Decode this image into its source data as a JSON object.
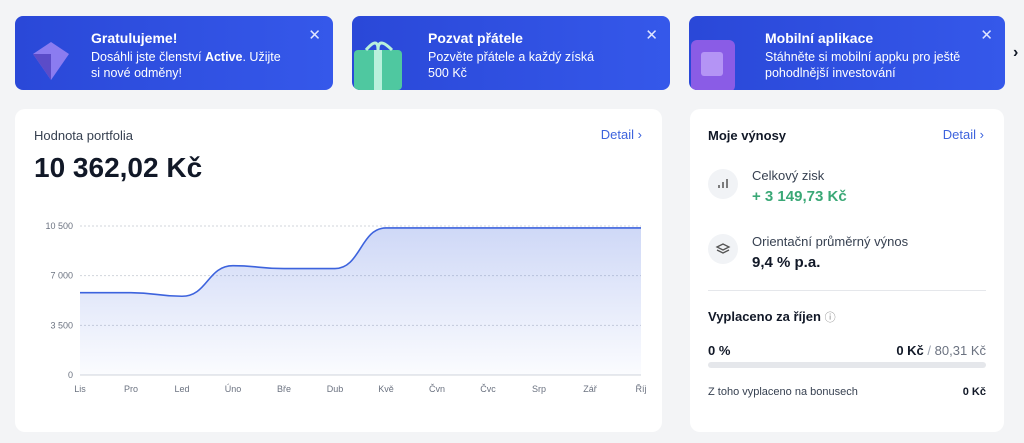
{
  "banners": [
    {
      "title": "Gratulujeme!",
      "text_before": "Dosáhli jste členství ",
      "text_bold": "Active",
      "text_after": ". Užijte si nové odměny!"
    },
    {
      "title": "Pozvat přátele",
      "text_before": "Pozvěte přátele a každý získá 500 Kč",
      "text_bold": "",
      "text_after": ""
    },
    {
      "title": "Mobilní aplikace",
      "text_before": "Stáhněte si mobilní appku pro ještě pohodlnější investování",
      "text_bold": "",
      "text_after": ""
    }
  ],
  "portfolio": {
    "label": "Hodnota portfolia",
    "detail": "Detail",
    "value": "10 362,02 Kč"
  },
  "chart_data": {
    "type": "line",
    "categories": [
      "Lis",
      "Pro",
      "Led",
      "Úno",
      "Bře",
      "Dub",
      "Kvě",
      "Čvn",
      "Čvc",
      "Srp",
      "Zář",
      "Říj"
    ],
    "series": [
      {
        "name": "Hodnota portfolia",
        "color": "#3d63dd",
        "values": [
          5800,
          5800,
          5550,
          7700,
          7500,
          7500,
          10362,
          10362,
          10362,
          10362,
          10362,
          10362
        ]
      }
    ],
    "ylim": [
      0,
      10500
    ],
    "yticks": [
      0,
      {
        "value": 3500,
        "label": "3 500"
      },
      {
        "value": 7000,
        "label": "7 000"
      },
      {
        "value": 10500,
        "label": "10 500"
      }
    ],
    "grid": true
  },
  "returns": {
    "title": "Moje výnosy",
    "detail": "Detail",
    "items": [
      {
        "label": "Celkový zisk",
        "value": "+ 3 149,73 Kč"
      },
      {
        "label": "Orientační průměrný výnos",
        "value": "9,4 % p.a."
      }
    ],
    "payout": {
      "title": "Vyplaceno za říjen",
      "percent": "0 %",
      "paid": "0 Kč",
      "separator": "/",
      "total": "80,31 Kč",
      "bonus_label": "Z toho vyplaceno na bonusech",
      "bonus_value": "0 Kč"
    }
  }
}
